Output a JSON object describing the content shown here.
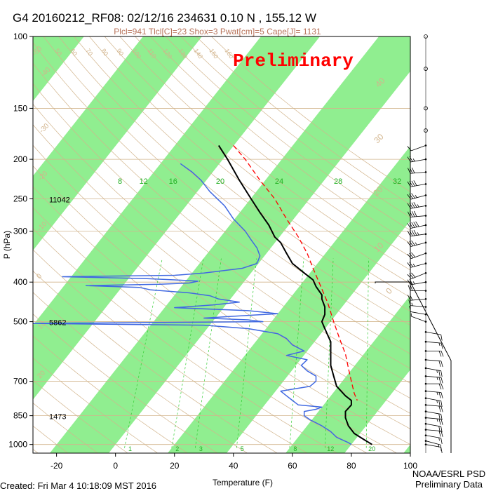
{
  "header": {
    "title": "G4 20160212_RF08: 02/12/16 234631    0.10 N , 155.12 W",
    "indices": "Plcl=941 Tlcl[C]=23 Shox=3 Pwat[cm]=5 Cape[J]= 1131"
  },
  "watermark": "Preliminary",
  "footer": {
    "created": "Created: Fri Mar  4 10:18:09 MST 2016",
    "org_line1": "NOAA/ESRL PSD",
    "org_line2": "Preliminary Data"
  },
  "colors": {
    "green_band": "#90ee90",
    "temperature": "#000000",
    "dewpoint": "#4169e1",
    "parcel": "#ff0000",
    "dry_adiabat": "#d2b48c",
    "mixing_ratio": "#32cd32",
    "isobar": "#d2b48c",
    "watermark": "#ff0000"
  },
  "chart_data": {
    "type": "skew-t",
    "xlabel": "Temperature (F)",
    "ylabel": "P (hPa)",
    "x_ticks": [
      -20,
      0,
      20,
      40,
      60,
      80,
      100
    ],
    "y_ticks": [
      100,
      150,
      200,
      250,
      300,
      400,
      500,
      700,
      850,
      1000
    ],
    "xlim": [
      -28,
      100
    ],
    "ylim": [
      1050,
      100
    ],
    "height_labels": [
      {
        "p": 250,
        "label": "11042"
      },
      {
        "p": 500,
        "label": "5862"
      },
      {
        "p": 850,
        "label": "1473"
      }
    ],
    "mixing_ratio_labels_top": [
      {
        "t": -8,
        "label": "8"
      },
      {
        "t": 0,
        "label": "12"
      },
      {
        "t": 10,
        "label": "16"
      },
      {
        "t": 26,
        "label": "20"
      },
      {
        "t": 46,
        "label": "24"
      },
      {
        "t": 66,
        "label": "28"
      },
      {
        "t": 86,
        "label": "32"
      }
    ],
    "mixing_ratio_labels_bottom": [
      {
        "t": 4,
        "label": "1"
      },
      {
        "t": 20,
        "label": "2"
      },
      {
        "t": 28,
        "label": "3"
      },
      {
        "t": 42,
        "label": "5"
      },
      {
        "t": 60,
        "label": "8"
      },
      {
        "t": 72,
        "label": "12"
      },
      {
        "t": 86,
        "label": "20"
      }
    ],
    "dry_adiabat_labels": [
      "50",
      "60",
      "70",
      "80",
      "90",
      "100",
      "110",
      "120",
      "130",
      "140",
      "150",
      "160"
    ],
    "skewed_isotherm_labels": [
      "-50",
      "-40",
      "-30",
      "-20",
      "-10",
      "0",
      "10",
      "20",
      "30",
      "40"
    ],
    "series": [
      {
        "name": "Temperature",
        "points": [
          [
            185,
            35
          ],
          [
            200,
            38
          ],
          [
            225,
            42
          ],
          [
            250,
            46
          ],
          [
            270,
            49
          ],
          [
            290,
            52
          ],
          [
            310,
            54
          ],
          [
            320,
            56
          ],
          [
            340,
            58
          ],
          [
            360,
            60
          ],
          [
            380,
            64
          ],
          [
            395,
            67
          ],
          [
            410,
            68
          ],
          [
            430,
            70
          ],
          [
            440,
            70
          ],
          [
            460,
            71
          ],
          [
            480,
            71
          ],
          [
            500,
            70
          ],
          [
            520,
            71
          ],
          [
            540,
            72
          ],
          [
            560,
            73
          ],
          [
            580,
            73
          ],
          [
            600,
            73
          ],
          [
            640,
            73
          ],
          [
            680,
            74
          ],
          [
            720,
            75
          ],
          [
            760,
            78
          ],
          [
            780,
            80
          ],
          [
            800,
            80
          ],
          [
            830,
            78
          ],
          [
            860,
            78
          ],
          [
            900,
            79
          ],
          [
            940,
            81
          ],
          [
            970,
            84
          ],
          [
            1000,
            87
          ]
        ]
      },
      {
        "name": "Dewpoint",
        "points": [
          [
            205,
            22
          ],
          [
            215,
            26
          ],
          [
            225,
            29
          ],
          [
            240,
            32
          ],
          [
            260,
            37
          ],
          [
            280,
            40
          ],
          [
            300,
            44
          ],
          [
            315,
            46
          ],
          [
            330,
            48
          ],
          [
            345,
            49
          ],
          [
            360,
            48
          ],
          [
            370,
            43
          ],
          [
            380,
            30
          ],
          [
            385,
            20
          ],
          [
            388,
            -18
          ],
          [
            392,
            10
          ],
          [
            395,
            20
          ],
          [
            398,
            28
          ],
          [
            402,
            25
          ],
          [
            405,
            15
          ],
          [
            408,
            -10
          ],
          [
            412,
            8
          ],
          [
            418,
            12
          ],
          [
            425,
            25
          ],
          [
            432,
            32
          ],
          [
            440,
            35
          ],
          [
            448,
            42
          ],
          [
            455,
            33
          ],
          [
            462,
            20
          ],
          [
            470,
            45
          ],
          [
            478,
            55
          ],
          [
            485,
            40
          ],
          [
            490,
            30
          ],
          [
            495,
            45
          ],
          [
            500,
            50
          ],
          [
            505,
            -30
          ],
          [
            510,
            30
          ],
          [
            520,
            45
          ],
          [
            535,
            55
          ],
          [
            550,
            58
          ],
          [
            570,
            60
          ],
          [
            590,
            64
          ],
          [
            605,
            58
          ],
          [
            620,
            65
          ],
          [
            640,
            63
          ],
          [
            660,
            65
          ],
          [
            680,
            68
          ],
          [
            700,
            68
          ],
          [
            720,
            66
          ],
          [
            740,
            56
          ],
          [
            760,
            58
          ],
          [
            780,
            60
          ],
          [
            800,
            62
          ],
          [
            810,
            70
          ],
          [
            820,
            68
          ],
          [
            830,
            64
          ],
          [
            850,
            64
          ],
          [
            870,
            66
          ],
          [
            900,
            70
          ],
          [
            930,
            73
          ],
          [
            960,
            75
          ],
          [
            990,
            79
          ],
          [
            1000,
            80
          ]
        ]
      },
      {
        "name": "Parcel",
        "points": [
          [
            185,
            40
          ],
          [
            200,
            44
          ],
          [
            225,
            49
          ],
          [
            250,
            54
          ],
          [
            280,
            58
          ],
          [
            310,
            62
          ],
          [
            340,
            65
          ],
          [
            370,
            67
          ],
          [
            400,
            69
          ],
          [
            450,
            72
          ],
          [
            500,
            74
          ],
          [
            550,
            76
          ],
          [
            600,
            78
          ],
          [
            650,
            79
          ],
          [
            700,
            80
          ],
          [
            750,
            81
          ],
          [
            780,
            82
          ]
        ]
      }
    ],
    "wind_barbs": [
      {
        "p": 100,
        "speed": 0,
        "dir": 0
      },
      {
        "p": 120,
        "speed": 0,
        "dir": 0
      },
      {
        "p": 150,
        "speed": 0,
        "dir": 0
      },
      {
        "p": 170,
        "speed": 0,
        "dir": 0
      },
      {
        "p": 185,
        "speed": 10,
        "dir": 250
      },
      {
        "p": 200,
        "speed": 25,
        "dir": 260
      },
      {
        "p": 215,
        "speed": 30,
        "dir": 265
      },
      {
        "p": 230,
        "speed": 40,
        "dir": 260
      },
      {
        "p": 245,
        "speed": 35,
        "dir": 255
      },
      {
        "p": 260,
        "speed": 45,
        "dir": 260
      },
      {
        "p": 275,
        "speed": 40,
        "dir": 265
      },
      {
        "p": 290,
        "speed": 50,
        "dir": 258
      },
      {
        "p": 305,
        "speed": 45,
        "dir": 262
      },
      {
        "p": 320,
        "speed": 35,
        "dir": 255
      },
      {
        "p": 340,
        "speed": 30,
        "dir": 250
      },
      {
        "p": 360,
        "speed": 25,
        "dir": 255
      },
      {
        "p": 380,
        "speed": 30,
        "dir": 248
      },
      {
        "p": 400,
        "speed": 25,
        "dir": 260
      },
      {
        "p": 420,
        "speed": 20,
        "dir": 270
      },
      {
        "p": 440,
        "speed": 20,
        "dir": 265
      },
      {
        "p": 460,
        "speed": 15,
        "dir": 275
      },
      {
        "p": 480,
        "speed": 10,
        "dir": 280
      },
      {
        "p": 500,
        "speed": 5,
        "dir": 290
      },
      {
        "p": 530,
        "speed": 10,
        "dir": 100
      },
      {
        "p": 560,
        "speed": 15,
        "dir": 95
      },
      {
        "p": 590,
        "speed": 20,
        "dir": 90
      },
      {
        "p": 620,
        "speed": 20,
        "dir": 95
      },
      {
        "p": 650,
        "speed": 25,
        "dir": 100
      },
      {
        "p": 680,
        "speed": 25,
        "dir": 95
      },
      {
        "p": 710,
        "speed": 20,
        "dir": 90
      },
      {
        "p": 740,
        "speed": 25,
        "dir": 95
      },
      {
        "p": 770,
        "speed": 25,
        "dir": 100
      },
      {
        "p": 800,
        "speed": 20,
        "dir": 95
      },
      {
        "p": 830,
        "speed": 20,
        "dir": 100
      },
      {
        "p": 860,
        "speed": 25,
        "dir": 95
      },
      {
        "p": 890,
        "speed": 20,
        "dir": 100
      },
      {
        "p": 920,
        "speed": 20,
        "dir": 95
      },
      {
        "p": 950,
        "speed": 15,
        "dir": 100
      },
      {
        "p": 980,
        "speed": 15,
        "dir": 105
      },
      {
        "p": 1000,
        "speed": 10,
        "dir": 100
      }
    ]
  }
}
